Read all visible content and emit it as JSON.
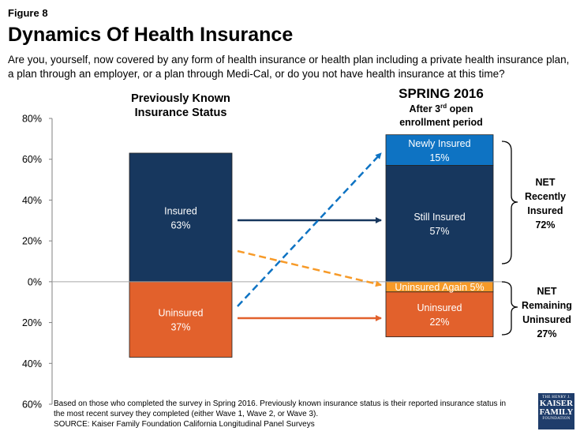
{
  "figure_label": "Figure 8",
  "title": "Dynamics Of Health Insurance",
  "question": "Are you, yourself, now covered by any form of health insurance or health plan including a private health insurance plan, a plan through an employer, or a plan through Medi-Cal, or do you not have health insurance at this time?",
  "footnote": {
    "line1": "Based on those who completed the survey in Spring 2016. Previously known insurance status is their reported insurance status in",
    "line2": "the most recent survey they completed (either Wave 1, Wave 2, or Wave 3).",
    "source": "SOURCE: Kaiser Family Foundation California Longitudinal Panel Surveys"
  },
  "logo": {
    "line1": "THE HENRY J.",
    "line2": "KAISER",
    "line3": "FAMILY",
    "line4": "FOUNDATION"
  },
  "colors": {
    "insured": "#17375e",
    "uninsured": "#e2612c",
    "newly_insured": "#0e73c3",
    "uninsured_again": "#f79a28",
    "axis": "#808080"
  },
  "chart_data": {
    "type": "bar",
    "ylim": [
      -60,
      80
    ],
    "yticks": [
      80,
      60,
      40,
      20,
      0,
      -20,
      -40,
      -60
    ],
    "ytick_labels": [
      "80%",
      "60%",
      "40%",
      "20%",
      "0%",
      "20%",
      "40%",
      "60%"
    ],
    "left_column": {
      "header_line1": "Previously Known",
      "header_line2": "Insurance Status",
      "segments": [
        {
          "name": "Insured",
          "value": 63,
          "label": "Insured",
          "value_label": "63%"
        },
        {
          "name": "Uninsured",
          "value": -37,
          "label": "Uninsured",
          "value_label": "37%"
        }
      ]
    },
    "right_column": {
      "header_line1": "SPRING 2016",
      "header_line2_pre": "After 3",
      "header_line2_sup": "rd",
      "header_line2_post": " open",
      "header_line3": "enrollment period",
      "segments": [
        {
          "name": "Still Insured",
          "value": 57,
          "label": "Still Insured",
          "value_label": "57%"
        },
        {
          "name": "Newly Insured",
          "value": 15,
          "label": "Newly Insured",
          "value_label": "15%"
        },
        {
          "name": "Uninsured Again",
          "value": -5,
          "label": "Uninsured Again 5%"
        },
        {
          "name": "Uninsured",
          "value": -22,
          "label": "Uninsured",
          "value_label": "22%"
        }
      ]
    },
    "net_insured": {
      "line1": "NET",
      "line2": "Recently",
      "line3": "Insured",
      "line4": "72%"
    },
    "net_uninsured": {
      "line1": "NET",
      "line2": "Remaining",
      "line3": "Uninsured",
      "line4": "27%"
    }
  }
}
